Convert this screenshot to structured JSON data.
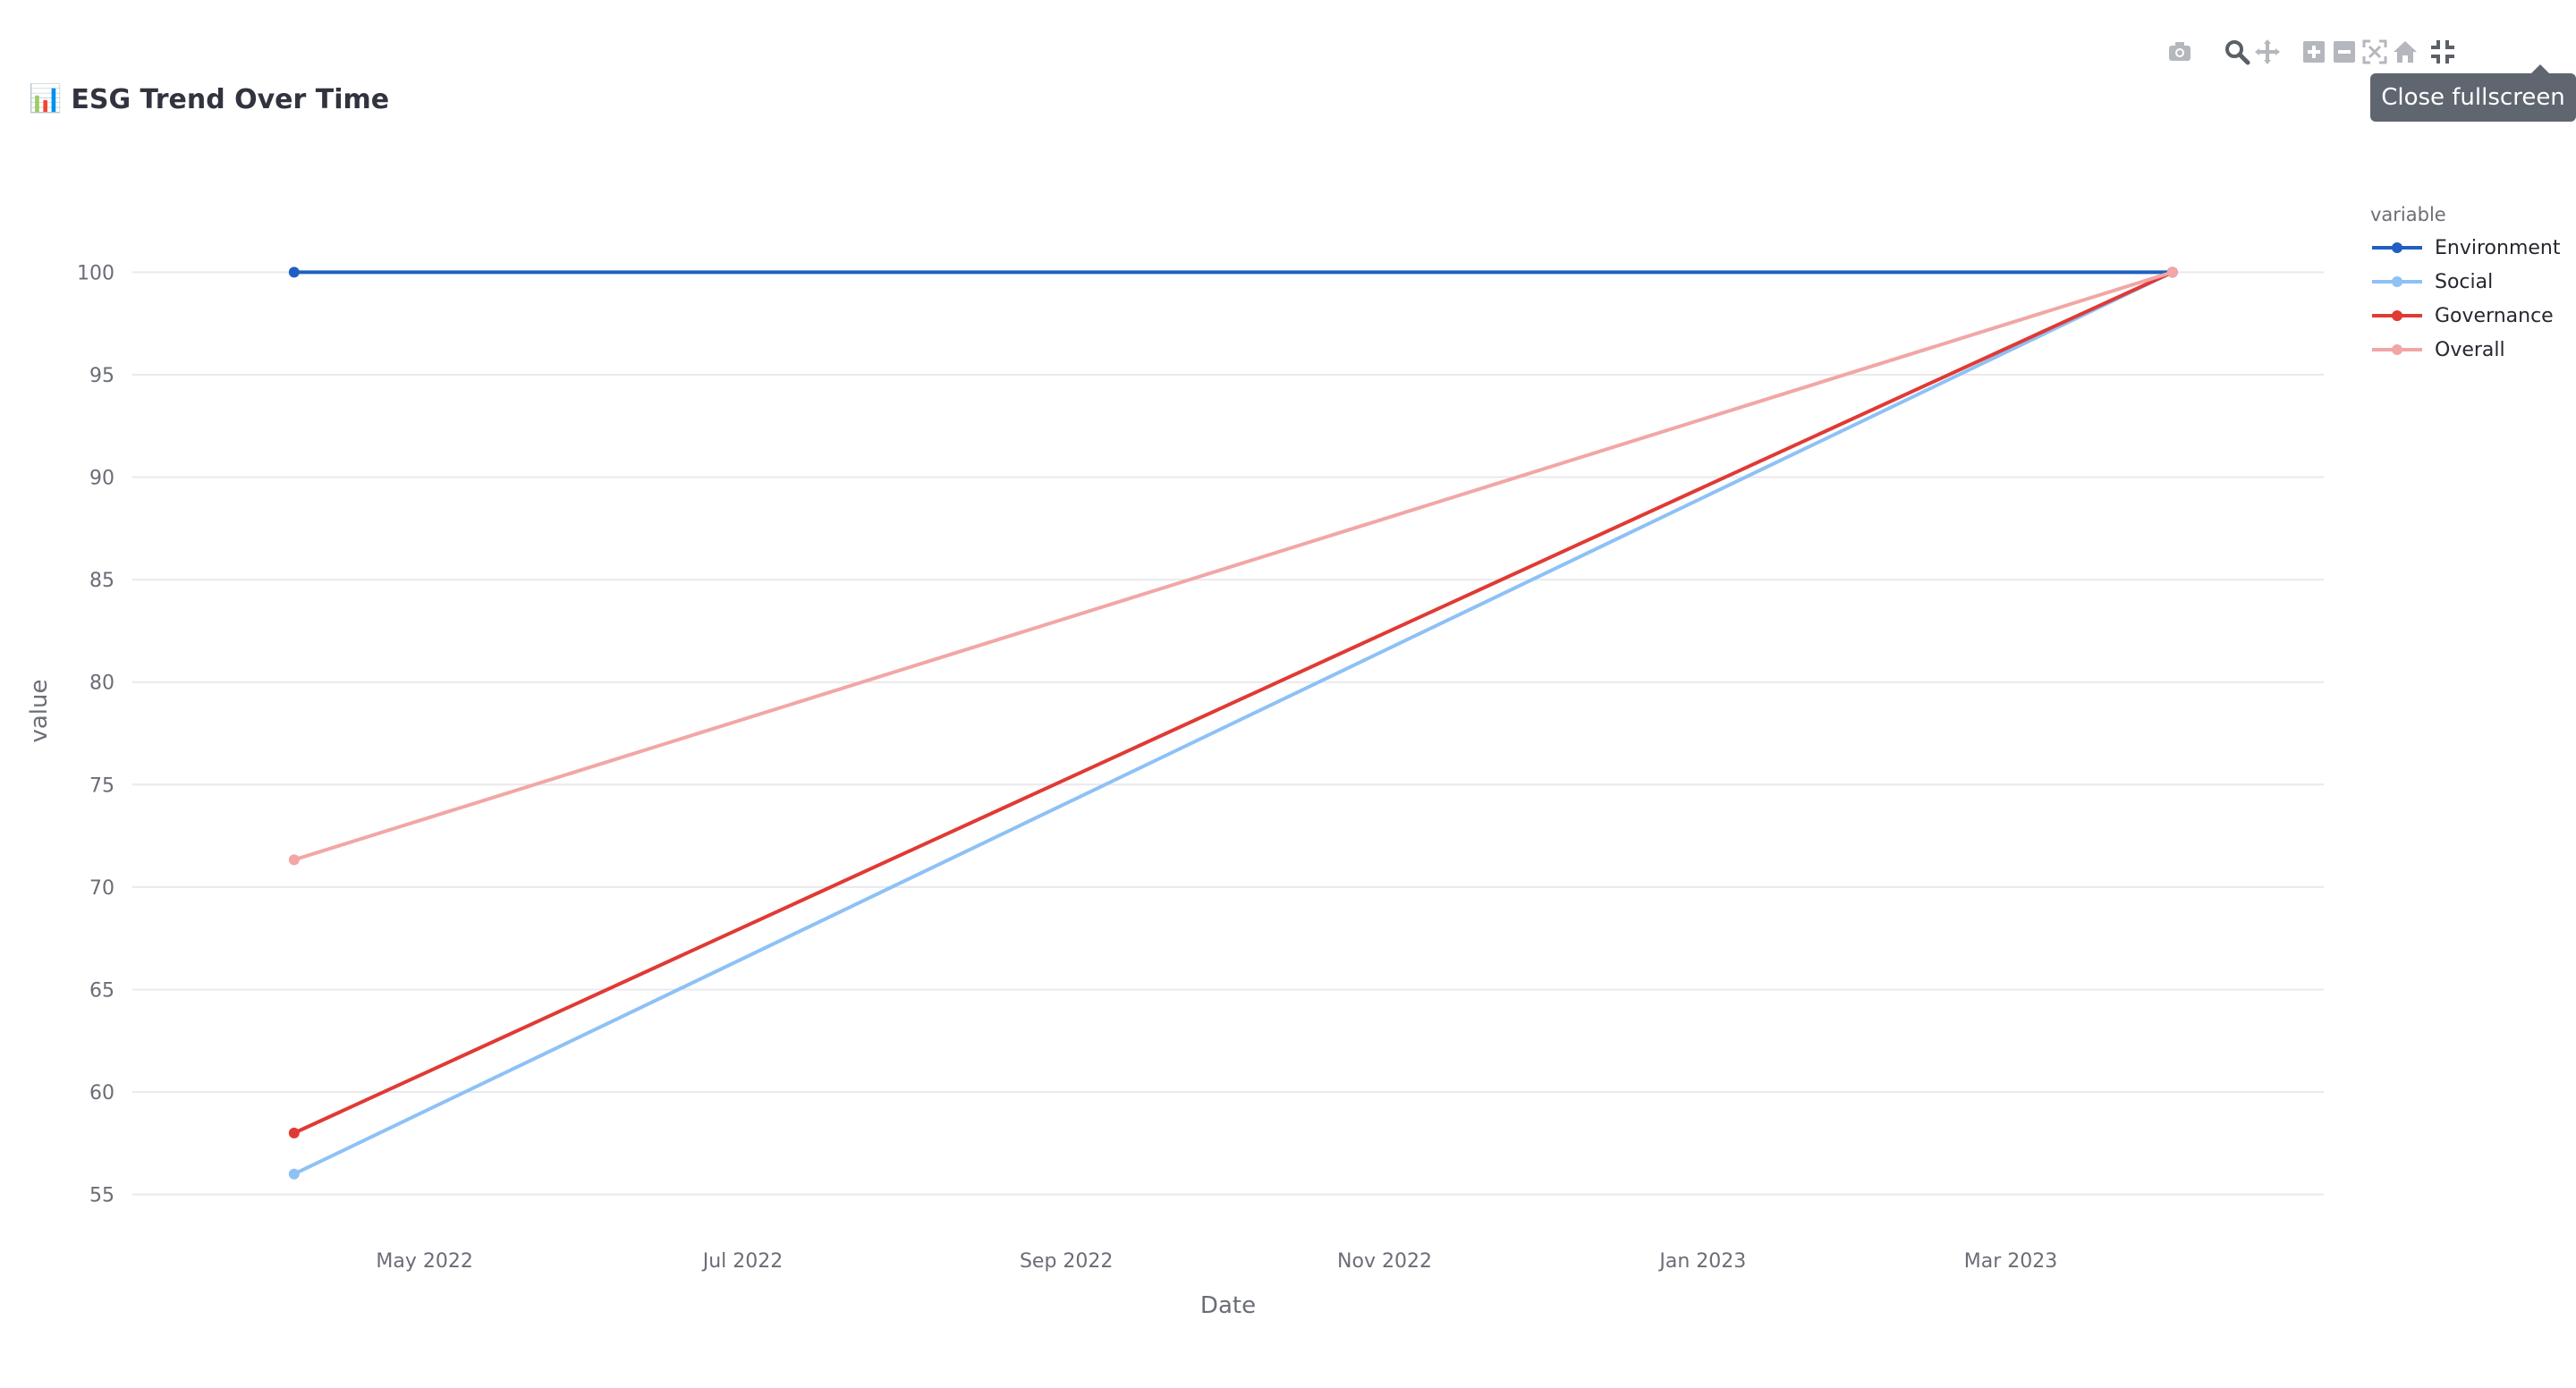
{
  "header": {
    "emoji": "📊",
    "title": "ESG Trend Over Time"
  },
  "toolbar": {
    "buttons": [
      {
        "name": "camera-icon",
        "active": false
      },
      {
        "name": "zoom-icon",
        "active": true
      },
      {
        "name": "pan-icon",
        "active": false
      },
      {
        "name": "zoom-in-icon",
        "active": false
      },
      {
        "name": "zoom-out-icon",
        "active": false
      },
      {
        "name": "autoscale-icon",
        "active": false
      },
      {
        "name": "reset-axes-icon",
        "active": false
      },
      {
        "name": "exit-fullscreen-icon",
        "active": true
      }
    ],
    "tooltip": "Close fullscreen"
  },
  "colors": {
    "Environment": "#1f5fc2",
    "Social": "#8ec1f5",
    "Governance": "#e03a35",
    "Overall": "#f2a6a6",
    "grid": "#e9e9ee",
    "tick": "#6b6d76",
    "icon": "#b4b7bd",
    "icon_active": "#5b5f66"
  },
  "chart_data": {
    "type": "line",
    "title": "",
    "xlabel": "Date",
    "ylabel": "value",
    "legend_title": "variable",
    "legend_position": "top-right",
    "grid": true,
    "xlim": [
      "2022-03-06",
      "2023-04-30"
    ],
    "ylim": [
      53.5,
      101.5
    ],
    "x_ticks": [
      {
        "date": "2022-05-01",
        "label": "May 2022"
      },
      {
        "date": "2022-07-01",
        "label": "Jul 2022"
      },
      {
        "date": "2022-09-01",
        "label": "Sep 2022"
      },
      {
        "date": "2022-11-01",
        "label": "Nov 2022"
      },
      {
        "date": "2023-01-01",
        "label": "Jan 2023"
      },
      {
        "date": "2023-03-01",
        "label": "Mar 2023"
      }
    ],
    "y_ticks": [
      55,
      60,
      65,
      70,
      75,
      80,
      85,
      90,
      95,
      100
    ],
    "x": [
      "2022-04-06",
      "2023-04-01"
    ],
    "series": [
      {
        "name": "Environment",
        "values": [
          100,
          100
        ]
      },
      {
        "name": "Social",
        "values": [
          56,
          100
        ]
      },
      {
        "name": "Governance",
        "values": [
          58,
          100
        ]
      },
      {
        "name": "Overall",
        "values": [
          71.33,
          100
        ]
      }
    ]
  }
}
